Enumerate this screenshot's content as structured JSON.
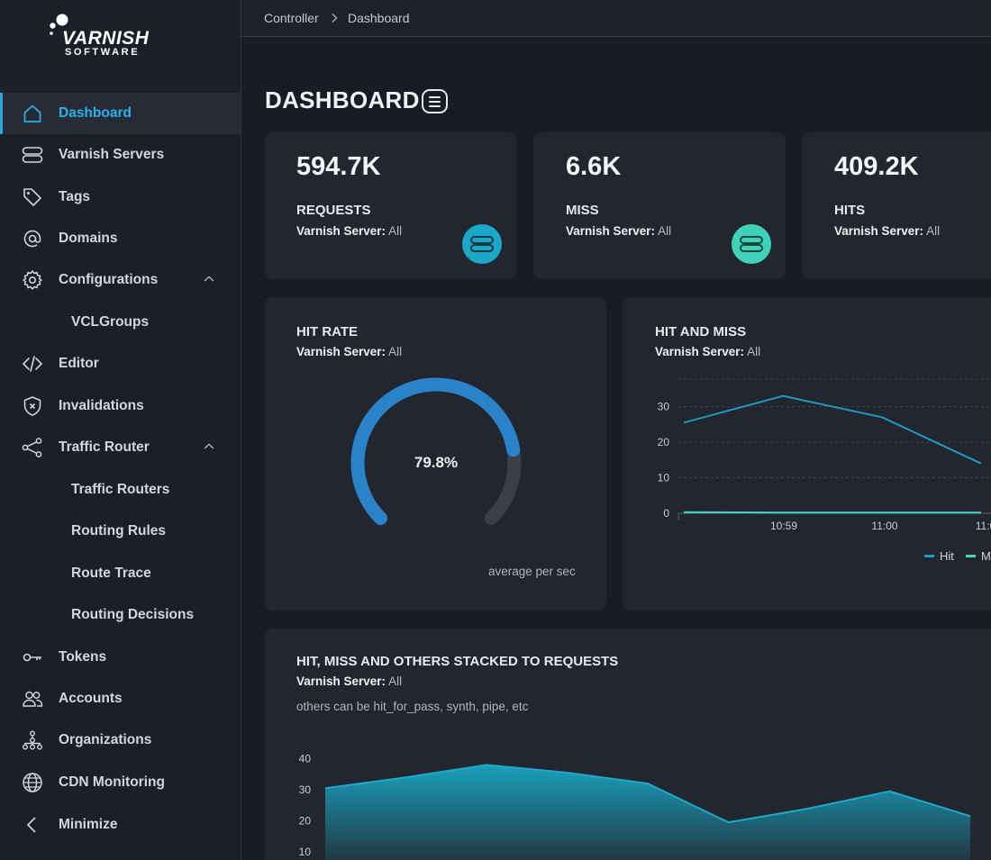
{
  "brand": {
    "name": "VARNISH",
    "sub": "SOFTWARE"
  },
  "breadcrumb": [
    "Controller",
    "Dashboard"
  ],
  "sidebar": {
    "items": [
      {
        "label": "Dashboard",
        "icon": "home-icon"
      },
      {
        "label": "Varnish Servers",
        "icon": "server-icon"
      },
      {
        "label": "Tags",
        "icon": "tag-icon"
      },
      {
        "label": "Domains",
        "icon": "at-icon"
      },
      {
        "label": "Configurations",
        "icon": "gear-icon"
      },
      {
        "label": "VCLGroups"
      },
      {
        "label": "Editor",
        "icon": "code-icon"
      },
      {
        "label": "Invalidations",
        "icon": "shield-x-icon"
      },
      {
        "label": "Traffic Router",
        "icon": "share-icon"
      },
      {
        "label": "Traffic Routers"
      },
      {
        "label": "Routing Rules"
      },
      {
        "label": "Route Trace"
      },
      {
        "label": "Routing Decisions"
      },
      {
        "label": "Tokens",
        "icon": "key-icon"
      },
      {
        "label": "Accounts",
        "icon": "users-icon"
      },
      {
        "label": "Organizations",
        "icon": "org-tree-icon"
      },
      {
        "label": "CDN Monitoring",
        "icon": "globe-icon"
      },
      {
        "label": "Minimize",
        "icon": "chevron-left-icon"
      }
    ]
  },
  "page": {
    "title": "DASHBOARD"
  },
  "server_label": "Varnish Server:",
  "server_value": "All",
  "stats": [
    {
      "value": "594.7K",
      "label": "REQUESTS",
      "icon_color": "#1ca7c9"
    },
    {
      "value": "6.6K",
      "label": "MISS",
      "icon_color": "#3fd2b8"
    },
    {
      "value": "409.2K",
      "label": "HITS"
    }
  ],
  "hit_rate": {
    "title": "HIT RATE",
    "value_text": "79.8%",
    "value": 79.8,
    "note": "average per sec"
  },
  "hit_miss": {
    "title": "HIT AND MISS",
    "legend": [
      "Hit",
      "M"
    ]
  },
  "stacked": {
    "title": "HIT, MISS AND OTHERS STACKED TO REQUESTS",
    "note": "others can be hit_for_pass, synth, pipe, etc"
  },
  "colors": {
    "accent": "#2bb2ea",
    "hit": "#1f9ac3",
    "miss": "#45d6c0",
    "gauge": "#2a83c8"
  },
  "chart_data": [
    {
      "type": "line",
      "title": "HIT AND MISS",
      "x_ticks": [
        "10:59",
        "11:00",
        "11:0"
      ],
      "y_ticks": [
        0,
        10,
        20,
        30
      ],
      "ylim": [
        0,
        35
      ],
      "grid": true,
      "series": [
        {
          "name": "Hit",
          "x": [
            0,
            1,
            2,
            3
          ],
          "values": [
            25.5,
            33,
            27,
            14
          ]
        },
        {
          "name": "M",
          "x": [
            0,
            1,
            2,
            3
          ],
          "values": [
            0.3,
            0.2,
            0.2,
            0.2
          ]
        }
      ]
    },
    {
      "type": "area",
      "title": "HIT, MISS AND OTHERS STACKED TO REQUESTS",
      "y_ticks": [
        10,
        20,
        30,
        40
      ],
      "ylim": [
        5,
        45
      ],
      "series": [
        {
          "values": [
            30.5,
            34,
            38,
            35.5,
            32,
            19.5,
            24,
            29.5,
            21.5
          ]
        }
      ]
    }
  ]
}
